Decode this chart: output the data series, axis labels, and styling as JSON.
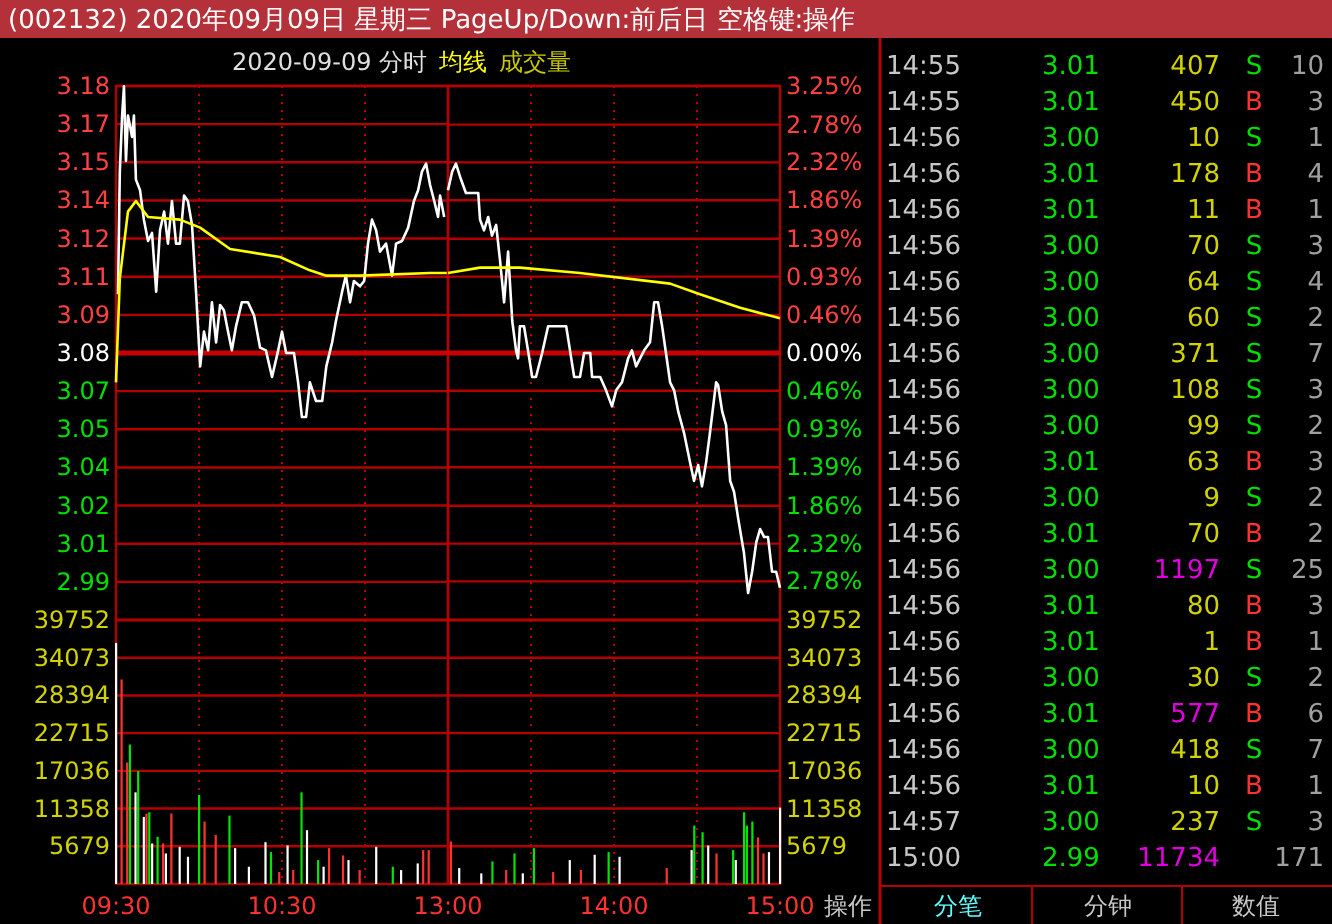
{
  "chart_data": [
    {
      "type": "line",
      "title": "(002132) 2020年09月09日 星期三 PageUp/Down:前后日 空格键:操作",
      "subtitle": "2020-09-09 分时",
      "annotations": [
        "成交量"
      ],
      "legend": "top right",
      "grid": true,
      "tick_labels": "y",
      "series": [
        {
          "color": "#ffffff",
          "x": [
            9.512,
            9.523,
            9.537,
            9.548,
            9.56,
            9.572,
            9.597,
            9.608,
            9.62,
            9.645,
            9.668,
            9.693,
            9.717,
            9.742,
            9.765,
            9.79,
            9.813,
            9.837,
            9.862,
            9.885,
            9.91,
            9.933,
            9.958,
            9.982,
            10.007,
            10.03,
            10.055,
            10.078,
            10.103,
            10.127,
            10.15,
            10.175,
            10.198,
            10.223,
            10.258,
            10.295,
            10.332,
            10.368,
            10.403,
            10.44,
            10.477,
            10.5,
            10.525,
            10.572,
            10.597,
            10.62,
            10.645,
            10.668,
            10.705,
            10.742,
            10.767,
            10.802,
            10.825,
            10.862,
            10.885,
            10.91,
            10.933,
            10.97,
            10.995,
            11.018,
            11.042,
            11.067,
            11.09,
            11.127,
            11.163,
            11.187,
            11.223,
            11.26,
            11.295,
            11.32,
            11.343,
            11.368,
            11.392,
            11.417,
            11.44,
            11.452,
            11.477
          ],
          "values": [
            3.102,
            3.148,
            3.169,
            3.18,
            3.152,
            3.169,
            3.161,
            3.169,
            3.145,
            3.141,
            3.13,
            3.122,
            3.125,
            3.103,
            3.126,
            3.133,
            3.121,
            3.137,
            3.121,
            3.121,
            3.139,
            3.137,
            3.128,
            3.103,
            3.075,
            3.088,
            3.081,
            3.099,
            3.084,
            3.098,
            3.096,
            3.088,
            3.081,
            3.09,
            3.099,
            3.099,
            3.094,
            3.082,
            3.081,
            3.071,
            3.081,
            3.088,
            3.08,
            3.08,
            3.069,
            3.056,
            3.056,
            3.069,
            3.062,
            3.062,
            3.075,
            3.084,
            3.092,
            3.103,
            3.109,
            3.099,
            3.107,
            3.105,
            3.107,
            3.121,
            3.13,
            3.126,
            3.118,
            3.121,
            3.109,
            3.121,
            3.122,
            3.127,
            3.137,
            3.141,
            3.148,
            3.151,
            3.143,
            3.137,
            3.131,
            3.139,
            3.131
          ]
        },
        {
          "name": "均线",
          "color": "#ffff00",
          "x": [
            9.5,
            9.523,
            9.572,
            9.62,
            9.693,
            9.885,
            10.007,
            10.187,
            10.488,
            10.668,
            10.767,
            10.97,
            11.392,
            11.5
          ],
          "values": [
            3.069,
            3.108,
            3.133,
            3.137,
            3.131,
            3.13,
            3.127,
            3.119,
            3.116,
            3.111,
            3.109,
            3.109,
            3.11,
            3.11
          ]
        }
      ],
      "xlim": [
        9.5,
        11.5
      ],
      "xticks": [
        9.5,
        10,
        10.5,
        11
      ],
      "ylim": [
        2.9799,
        3.1801
      ],
      "yticks": [
        {
          "value": 3.1801,
          "label": "3.18"
        },
        {
          "value": 3.1658,
          "label": "3.17"
        },
        {
          "value": 3.1515,
          "label": "3.15"
        },
        {
          "value": 3.1372,
          "label": "3.14"
        },
        {
          "value": 3.1229,
          "label": "3.12"
        },
        {
          "value": 3.1086,
          "label": "3.11"
        },
        {
          "value": 3.0943,
          "label": "3.09"
        },
        {
          "value": 3.08,
          "label": "3.08"
        },
        {
          "value": 3.0657,
          "label": "3.07"
        },
        {
          "value": 3.0514,
          "label": "3.05"
        },
        {
          "value": 3.0371,
          "label": "3.04"
        },
        {
          "value": 3.0228,
          "label": "3.02"
        },
        {
          "value": 3.0085,
          "label": "3.01"
        },
        {
          "value": 2.9942,
          "label": "2.99"
        }
      ],
      "ref_lines": [
        {
          "axis": "y",
          "value": 3.08,
          "color": "#c80000"
        }
      ]
    },
    {
      "type": "line",
      "grid": true,
      "tick_labels": "y",
      "series": [
        {
          "color": "#ffffff",
          "x": [
            13.0,
            13.025,
            13.048,
            13.073,
            13.108,
            13.145,
            13.182,
            13.193,
            13.217,
            13.242,
            13.265,
            13.29,
            13.313,
            13.338,
            13.362,
            13.387,
            13.41,
            13.422,
            13.433,
            13.458,
            13.482,
            13.507,
            13.53,
            13.567,
            13.603,
            13.638,
            13.712,
            13.735,
            13.76,
            13.795,
            13.82,
            13.857,
            13.868,
            13.917,
            13.952,
            13.988,
            14.013,
            14.048,
            14.085,
            14.108,
            14.133,
            14.157,
            14.182,
            14.217,
            14.242,
            14.265,
            14.29,
            14.313,
            14.338,
            14.362,
            14.387,
            14.422,
            14.458,
            14.482,
            14.507,
            14.53,
            14.555,
            14.578,
            14.615,
            14.627,
            14.652,
            14.675,
            14.7,
            14.723,
            14.748,
            14.783,
            14.808,
            14.832,
            14.857,
            14.88,
            14.905,
            14.928,
            14.952,
            14.977,
            15.0
          ],
          "values": [
            3.141,
            3.148,
            3.151,
            3.146,
            3.14,
            3.14,
            3.14,
            3.13,
            3.126,
            3.131,
            3.124,
            3.128,
            3.115,
            3.099,
            3.118,
            3.092,
            3.081,
            3.078,
            3.09,
            3.09,
            3.081,
            3.071,
            3.071,
            3.08,
            3.09,
            3.09,
            3.09,
            3.081,
            3.071,
            3.071,
            3.08,
            3.08,
            3.071,
            3.071,
            3.066,
            3.06,
            3.066,
            3.069,
            3.078,
            3.081,
            3.075,
            3.078,
            3.081,
            3.084,
            3.099,
            3.099,
            3.09,
            3.08,
            3.069,
            3.066,
            3.058,
            3.05,
            3.039,
            3.032,
            3.038,
            3.03,
            3.039,
            3.05,
            3.069,
            3.068,
            3.058,
            3.053,
            3.032,
            3.028,
            3.018,
            3.005,
            2.99,
            2.998,
            3.009,
            3.014,
            3.011,
            3.011,
            2.998,
            2.998,
            2.992
          ]
        },
        {
          "color": "#ffff00",
          "x": [
            13.0,
            13.193,
            13.433,
            13.795,
            14.338,
            14.518,
            14.76,
            15
          ],
          "values": [
            3.11,
            3.112,
            3.112,
            3.11,
            3.106,
            3.102,
            3.097,
            3.093
          ]
        }
      ],
      "xlim": [
        13,
        15
      ],
      "xticks": [
        13,
        13.5,
        14,
        14.5,
        15
      ],
      "ylim": [
        2.9799,
        3.1801
      ],
      "y2lim": [
        -3.25,
        3.25
      ],
      "y2ticks": [
        {
          "value": 3.25,
          "label": "3.25%"
        },
        {
          "value": 2.78,
          "label": "2.78%"
        },
        {
          "value": 2.32,
          "label": "2.32%"
        },
        {
          "value": 1.86,
          "label": "1.86%"
        },
        {
          "value": 1.39,
          "label": "1.39%"
        },
        {
          "value": 0.93,
          "label": "0.93%"
        },
        {
          "value": 0.46,
          "label": "0.46%"
        },
        {
          "value": 0,
          "label": "0.00%"
        },
        {
          "value": -0.46,
          "label": "0.46%"
        },
        {
          "value": -0.93,
          "label": "0.93%"
        },
        {
          "value": -1.39,
          "label": "1.39%"
        },
        {
          "value": -1.86,
          "label": "1.86%"
        },
        {
          "value": -2.32,
          "label": "2.32%"
        },
        {
          "value": -2.78,
          "label": "2.78%"
        }
      ],
      "ref_lines": [
        {
          "axis": "y2",
          "value": 0,
          "color": "#c80000"
        }
      ]
    },
    {
      "type": "bar",
      "grid": true,
      "series": [
        {
          "color": "#ff3232",
          "x": [
            9.533,
            9.567,
            9.683,
            9.783,
            9.833,
            10.033,
            10.1,
            10.483,
            10.567,
            10.783,
            10.867,
            10.967,
            11.35,
            11.383
          ],
          "values": [
            30800,
            18300,
            10600,
            6100,
            10600,
            9400,
            7400,
            1800,
            2100,
            5400,
            4300,
            2100,
            5100,
            5100
          ]
        },
        {
          "color": "#00e600",
          "x": [
            9.583,
            9.633,
            9.7,
            9.75,
            10,
            10.183,
            10.433,
            10.617,
            10.717,
            11.167
          ],
          "values": [
            21000,
            17000,
            10800,
            7100,
            13400,
            10300,
            4800,
            13800,
            3600,
            2600
          ]
        },
        {
          "color": "#ffffff",
          "x": [
            9.5,
            9.617,
            9.667,
            9.717,
            9.8,
            9.883,
            9.933,
            10.217,
            10.3,
            10.4,
            10.533,
            10.65,
            10.75,
            10.9,
            11.067,
            11.217,
            11.317
          ],
          "values": [
            36300,
            13800,
            10100,
            6100,
            4600,
            5600,
            4100,
            5400,
            2600,
            6300,
            5800,
            8100,
            2600,
            3600,
            5600,
            2100,
            3100
          ]
        }
      ],
      "xlim": [
        9.5,
        11.5
      ],
      "xticks": [
        {
          "value": 9.5,
          "label": "09:30"
        },
        {
          "value": 10,
          "label": null
        },
        {
          "value": 10.5,
          "label": "10:30"
        },
        {
          "value": 11,
          "label": null
        }
      ],
      "ylim": [
        0,
        39752
      ],
      "yticks": [
        5679,
        11358,
        17036,
        22715,
        28394,
        34073,
        39752
      ]
    },
    {
      "type": "bar",
      "grid": true,
      "series": [
        {
          "color": "#ff3232",
          "axis": "y2",
          "x": [
            13.017,
            13.35,
            13.633,
            13.8,
            14.317,
            14.617,
            14.867,
            14.9
          ],
          "values": [
            6400,
            2100,
            1800,
            2100,
            2400,
            4600,
            7000,
            4600
          ]
        },
        {
          "color": "#00e600",
          "axis": "y2",
          "x": [
            13.267,
            13.4,
            13.517,
            13.967,
            14.483,
            14.533,
            14.717,
            14.783,
            14.8,
            14.833
          ],
          "values": [
            3400,
            4600,
            5400,
            4800,
            8800,
            7800,
            5100,
            10800,
            8800,
            9400
          ]
        },
        {
          "color": "#ffffff",
          "axis": "y2",
          "x": [
            13.067,
            13.2,
            13.45,
            13.733,
            13.883,
            14.033,
            14.467,
            14.567,
            14.733,
            14.933,
            15
          ],
          "values": [
            2400,
            1600,
            1600,
            3600,
            4400,
            4100,
            5100,
            5800,
            3600,
            4800,
            11500
          ]
        }
      ],
      "xlim": [
        13,
        15
      ],
      "xticks": [
        {
          "value": 13,
          "label": "13:00"
        },
        {
          "value": 13.5,
          "label": null
        },
        {
          "value": 14,
          "label": "14:00"
        },
        {
          "value": 14.5,
          "label": null
        },
        {
          "value": 15,
          "label": "15:00"
        }
      ],
      "y2lim": [
        0,
        39752
      ],
      "y2ticks": [
        5679,
        11358,
        17036,
        22715,
        28394,
        34073,
        39752
      ]
    },
    {
      "type": "other",
      "annotations": [
        "14:55",
        "3.01",
        "407",
        "S",
        "10",
        "14:55",
        "3.01",
        "450",
        "B",
        "3",
        "14:56",
        "3.00",
        "10",
        "S",
        "1",
        "14:56",
        "3.01",
        "178",
        "B",
        "4",
        "14:56",
        "3.01",
        "11",
        "B",
        "1",
        "14:56",
        "3.00",
        "70",
        "S",
        "3",
        "14:56",
        "3.00",
        "64",
        "S",
        "4",
        "14:56",
        "3.00",
        "60",
        "S",
        "2",
        "14:56",
        "3.00",
        "371",
        "S",
        "7",
        "14:56",
        "3.00",
        "108",
        "S",
        "3",
        "14:56",
        "3.00",
        "99",
        "S",
        "2",
        "14:56",
        "3.01",
        "63",
        "B",
        "3",
        "14:56",
        "3.00",
        "9",
        "S",
        "2",
        "14:56",
        "3.01",
        "70",
        "B",
        "2",
        "14:56",
        "3.00",
        "1197",
        "S",
        "25",
        "14:56",
        "3.01",
        "80",
        "B",
        "3",
        "14:56",
        "3.01",
        "1",
        "B",
        "1",
        "14:56",
        "3.00",
        "30",
        "S",
        "2",
        "14:56",
        "3.01",
        "577",
        "B",
        "6",
        "14:56",
        "3.00",
        "418",
        "S",
        "7",
        "14:56",
        "3.01",
        "10",
        "B",
        "1",
        "14:57",
        "3.00",
        "237",
        "S",
        "3",
        "15:00",
        "2.99",
        "11734",
        null,
        "171",
        "分笔",
        "分钟",
        "数值",
        "操作"
      ],
      "colors": [
        "#c8c8c8",
        "#00e000",
        "#d2d200",
        "#00e000",
        "#a0a0a0",
        "#c8c8c8",
        "#00e000",
        "#d2d200",
        "#ff3232",
        "#a0a0a0",
        "#c8c8c8",
        "#00e000",
        "#d2d200",
        "#00e000",
        "#a0a0a0",
        "#c8c8c8",
        "#00e000",
        "#d2d200",
        "#ff3232",
        "#a0a0a0",
        "#c8c8c8",
        "#00e000",
        "#d2d200",
        "#ff3232",
        "#a0a0a0",
        "#c8c8c8",
        "#00e000",
        "#d2d200",
        "#00e000",
        "#a0a0a0",
        "#c8c8c8",
        "#00e000",
        "#d2d200",
        "#00e000",
        "#a0a0a0",
        "#c8c8c8",
        "#00e000",
        "#d2d200",
        "#00e000",
        "#a0a0a0",
        "#c8c8c8",
        "#00e000",
        "#d2d200",
        "#00e000",
        "#a0a0a0",
        "#c8c8c8",
        "#00e000",
        "#d2d200",
        "#00e000",
        "#a0a0a0",
        "#c8c8c8",
        "#00e000",
        "#d2d200",
        "#00e000",
        "#a0a0a0",
        "#c8c8c8",
        "#00e000",
        "#d2d200",
        "#ff3232",
        "#a0a0a0",
        "#c8c8c8",
        "#00e000",
        "#d2d200",
        "#00e000",
        "#a0a0a0",
        "#c8c8c8",
        "#00e000",
        "#d2d200",
        "#ff3232",
        "#a0a0a0",
        "#c8c8c8",
        "#00e000",
        "#e000e0",
        "#00e000",
        "#a0a0a0",
        "#c8c8c8",
        "#00e000",
        "#d2d200",
        "#ff3232",
        "#a0a0a0",
        "#c8c8c8",
        "#00e000",
        "#d2d200",
        "#ff3232",
        "#a0a0a0",
        "#c8c8c8",
        "#00e000",
        "#d2d200",
        "#00e000",
        "#a0a0a0",
        "#c8c8c8",
        "#00e000",
        "#e000e0",
        "#ff3232",
        "#a0a0a0",
        "#c8c8c8",
        "#00e000",
        "#d2d200",
        "#00e000",
        "#a0a0a0",
        "#c8c8c8",
        "#00e000",
        "#d2d200",
        "#ff3232",
        "#a0a0a0",
        "#c8c8c8",
        "#00e000",
        "#d2d200",
        "#00e000",
        "#a0a0a0",
        "#c8c8c8",
        "#00e000",
        "#e000e0",
        null,
        "#a0a0a0",
        "#60ffff",
        "#c8c8c8",
        "#c8c8c8",
        "#c8c8c8"
      ]
    }
  ]
}
